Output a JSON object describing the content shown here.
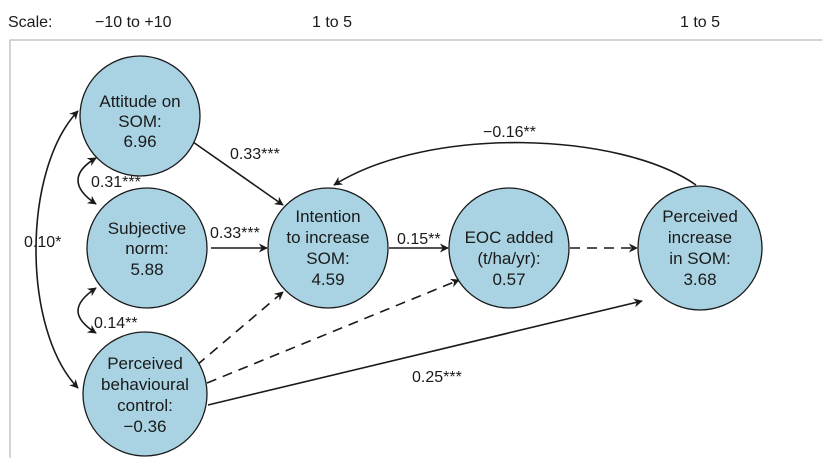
{
  "scale": {
    "label": "Scale:",
    "attitude_range": "−10 to +10",
    "intention_range": "1 to 5",
    "perceived_range": "1 to 5"
  },
  "nodes": {
    "attitude": [
      "Attitude on",
      "SOM:",
      "6.96"
    ],
    "norm": [
      "Subjective",
      "norm:",
      "5.88"
    ],
    "pbc": [
      "Perceived",
      "behavioural",
      "control:",
      "−0.36"
    ],
    "intention": [
      "Intention",
      "to increase",
      "SOM:",
      "4.59"
    ],
    "eoc": [
      "EOC added",
      "(t/ha/yr):",
      "0.57"
    ],
    "perceived": [
      "Perceived",
      "increase",
      "in SOM:",
      "3.68"
    ]
  },
  "edges": {
    "attitude_intention": "0.33***",
    "norm_intention": "0.33***",
    "intention_eoc": "0.15**",
    "perceived_intention": "−0.16**",
    "pbc_perceived": "0.25***",
    "attitude_norm": "0.31***",
    "norm_pbc": "0.14**",
    "attitude_pbc": "0.10*"
  },
  "colors": {
    "node_fill": "#a9d3e3",
    "stroke": "#1a1a1a"
  }
}
